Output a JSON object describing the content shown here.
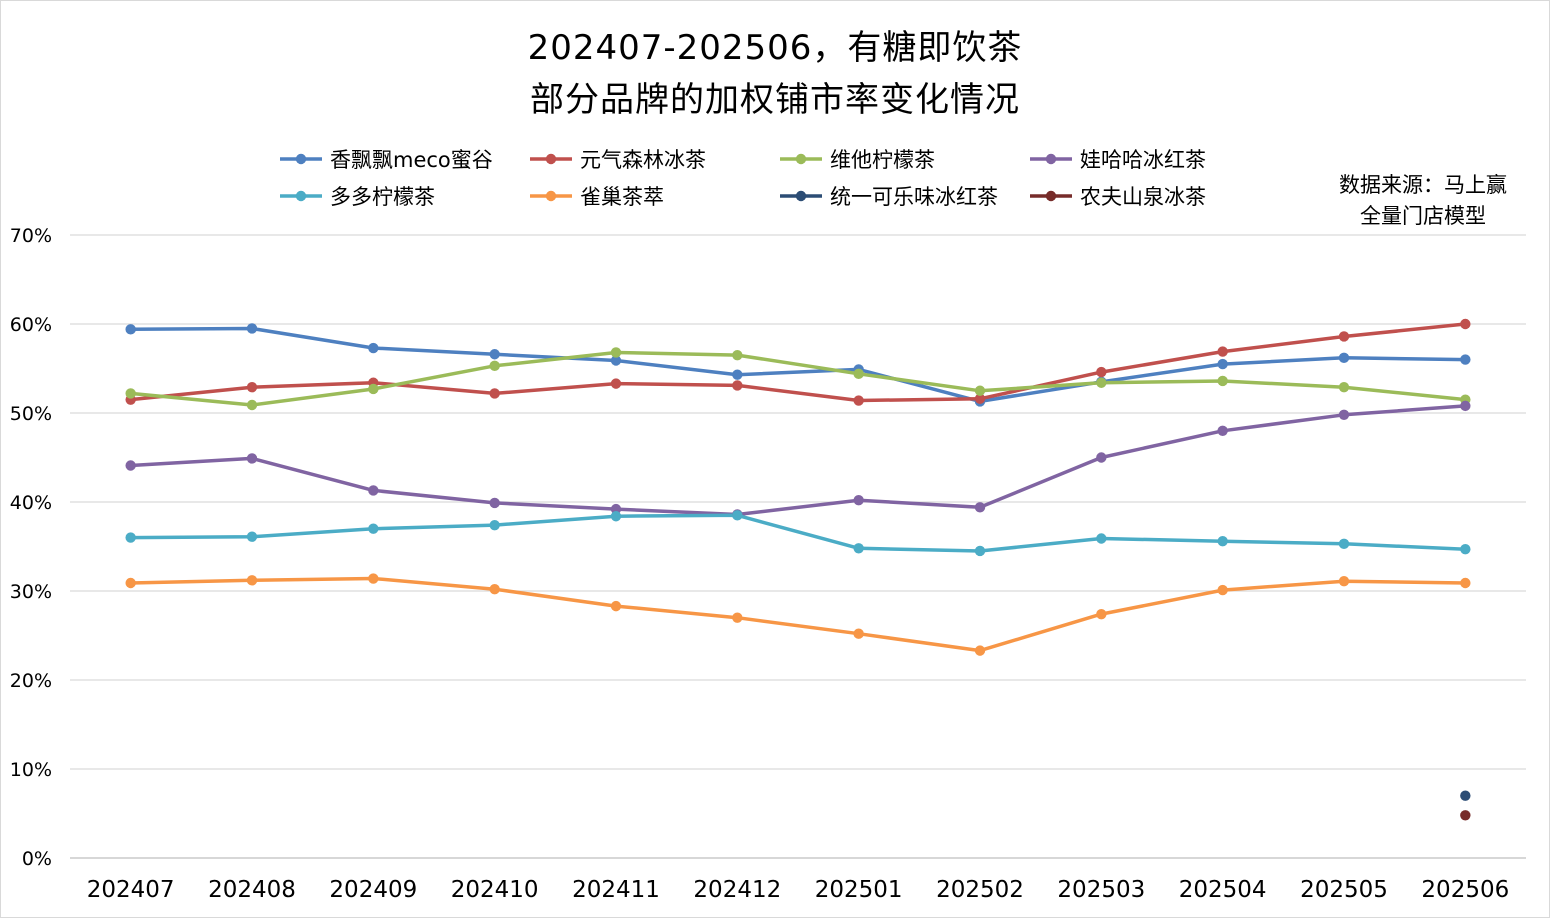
{
  "title_line1": "202407-202506，有糖即饮茶",
  "title_line2": "部分品牌的加权铺市率变化情况",
  "source_line1": "数据来源：马上赢",
  "source_line2": "全量门店模型",
  "chart_data": {
    "type": "line",
    "title": "202407-202506，有糖即饮茶 部分品牌的加权铺市率变化情况",
    "xlabel": "",
    "ylabel": "",
    "ylim": [
      0,
      70
    ],
    "y_ticks": [
      "0%",
      "10%",
      "20%",
      "30%",
      "40%",
      "50%",
      "60%",
      "70%"
    ],
    "grid": true,
    "legend_position": "top",
    "categories": [
      "202407",
      "202408",
      "202409",
      "202410",
      "202411",
      "202412",
      "202501",
      "202502",
      "202503",
      "202504",
      "202505",
      "202506"
    ],
    "series": [
      {
        "name": "香飘飘meco蜜谷",
        "color": "#4e80c0",
        "values": [
          59.4,
          59.5,
          57.3,
          56.6,
          55.9,
          54.3,
          54.9,
          51.3,
          53.5,
          55.5,
          56.2,
          56.0
        ]
      },
      {
        "name": "元气森林冰茶",
        "color": "#c0504d",
        "values": [
          51.5,
          52.9,
          53.4,
          52.2,
          53.3,
          53.1,
          51.4,
          51.6,
          54.6,
          56.9,
          58.6,
          60.0
        ]
      },
      {
        "name": "维他柠檬茶",
        "color": "#9bbb59",
        "values": [
          52.2,
          50.9,
          52.7,
          55.3,
          56.8,
          56.5,
          54.4,
          52.5,
          53.4,
          53.6,
          52.9,
          51.5
        ]
      },
      {
        "name": "娃哈哈冰红茶",
        "color": "#8064a2",
        "values": [
          44.1,
          44.9,
          41.3,
          39.9,
          39.2,
          38.6,
          40.2,
          39.4,
          45.0,
          48.0,
          49.8,
          50.8
        ]
      },
      {
        "name": "多多柠檬茶",
        "color": "#4bacc6",
        "values": [
          36.0,
          36.1,
          37.0,
          37.4,
          38.4,
          38.5,
          34.8,
          34.5,
          35.9,
          35.6,
          35.3,
          34.7
        ]
      },
      {
        "name": "雀巢茶萃",
        "color": "#f79646",
        "values": [
          30.9,
          31.2,
          31.4,
          30.2,
          28.3,
          27.0,
          25.2,
          23.3,
          27.4,
          30.1,
          31.1,
          30.9
        ]
      },
      {
        "name": "统一可乐味冰红茶",
        "color": "#2c4d75",
        "values": [
          null,
          null,
          null,
          null,
          null,
          null,
          null,
          null,
          null,
          null,
          null,
          7.0
        ]
      },
      {
        "name": "农夫山泉冰茶",
        "color": "#772c2a",
        "values": [
          null,
          null,
          null,
          null,
          null,
          null,
          null,
          null,
          null,
          null,
          null,
          4.8
        ]
      }
    ]
  }
}
